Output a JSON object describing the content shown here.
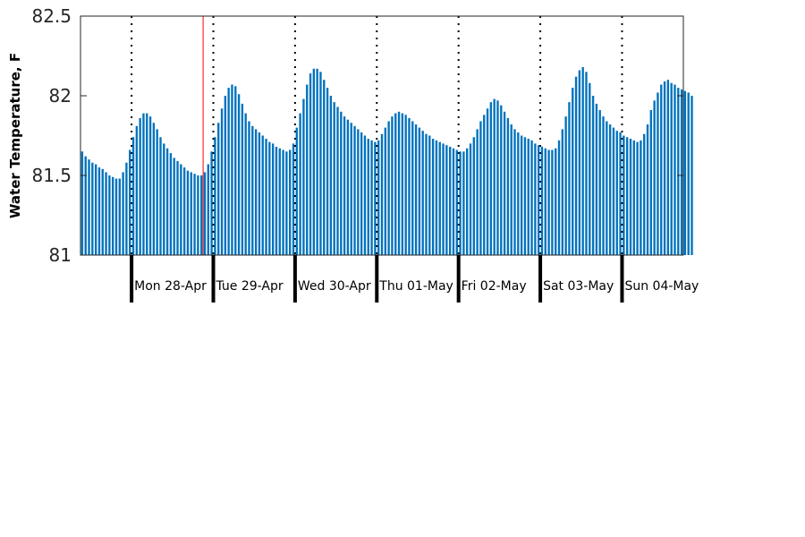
{
  "chart_data": {
    "type": "bar",
    "title": "",
    "xlabel": "",
    "ylabel": "Water Temperature, F",
    "ylim": [
      81,
      82.5
    ],
    "yticks": [
      81,
      81.5,
      82,
      82.5
    ],
    "ytick_labels": [
      "81",
      "81.5",
      "82",
      "82.5"
    ],
    "xlim": [
      "2025-04-27T09:00",
      "2025-05-04T18:00"
    ],
    "bar_interval_hours": 1,
    "x_start": "2025-04-27T09:00",
    "day_labels": [
      "Mon 28-Apr",
      "Tue 29-Apr",
      "Wed 30-Apr",
      "Thu 01-May",
      "Fri 02-May",
      "Sat 03-May",
      "Sun 04-May"
    ],
    "day_boundaries": [
      "2025-04-28T00:00",
      "2025-04-29T00:00",
      "2025-04-30T00:00",
      "2025-05-01T00:00",
      "2025-05-02T00:00",
      "2025-05-03T00:00",
      "2025-05-04T00:00"
    ],
    "current_time": "2025-04-28T21:00",
    "grid": "dotted vertical lines at midnight",
    "colors": {
      "bars": "#0072BD",
      "now_line": "#ff0000",
      "axis": "#262626"
    },
    "values": [
      81.65,
      81.62,
      81.6,
      81.58,
      81.57,
      81.55,
      81.54,
      81.52,
      81.5,
      81.49,
      81.48,
      81.48,
      81.52,
      81.58,
      81.66,
      81.74,
      81.81,
      81.86,
      81.89,
      81.89,
      81.87,
      81.83,
      81.79,
      81.74,
      81.7,
      81.67,
      81.64,
      81.61,
      81.59,
      81.57,
      81.55,
      81.53,
      81.52,
      81.51,
      81.5,
      81.5,
      81.52,
      81.57,
      81.65,
      81.74,
      81.83,
      81.92,
      82.0,
      82.05,
      82.07,
      82.06,
      82.01,
      81.95,
      81.89,
      81.84,
      81.81,
      81.79,
      81.77,
      81.75,
      81.73,
      81.71,
      81.7,
      81.68,
      81.67,
      81.66,
      81.65,
      81.66,
      81.7,
      81.8,
      81.89,
      81.98,
      82.07,
      82.14,
      82.17,
      82.17,
      82.15,
      82.1,
      82.05,
      82.0,
      81.96,
      81.93,
      81.9,
      81.87,
      81.85,
      81.83,
      81.81,
      81.79,
      81.77,
      81.75,
      81.73,
      81.72,
      81.71,
      81.72,
      81.76,
      81.8,
      81.84,
      81.87,
      81.89,
      81.9,
      81.89,
      81.88,
      81.86,
      81.84,
      81.82,
      81.8,
      81.78,
      81.76,
      81.75,
      81.73,
      81.72,
      81.71,
      81.7,
      81.69,
      81.68,
      81.67,
      81.66,
      81.65,
      81.65,
      81.67,
      81.7,
      81.74,
      81.79,
      81.84,
      81.88,
      81.92,
      81.96,
      81.98,
      81.97,
      81.94,
      81.9,
      81.86,
      81.82,
      81.79,
      81.77,
      81.75,
      81.74,
      81.73,
      81.72,
      81.7,
      81.69,
      81.68,
      81.67,
      81.66,
      81.66,
      81.67,
      81.72,
      81.79,
      81.87,
      81.96,
      82.05,
      82.12,
      82.16,
      82.18,
      82.15,
      82.08,
      82.0,
      81.95,
      81.91,
      81.87,
      81.84,
      81.82,
      81.8,
      81.78,
      81.77,
      81.75,
      81.74,
      81.73,
      81.72,
      81.71,
      81.72,
      81.76,
      81.82,
      81.91,
      81.97,
      82.02,
      82.07,
      82.09,
      82.1,
      82.08,
      82.07,
      82.05,
      82.04,
      82.03,
      82.02,
      82.0
    ]
  }
}
